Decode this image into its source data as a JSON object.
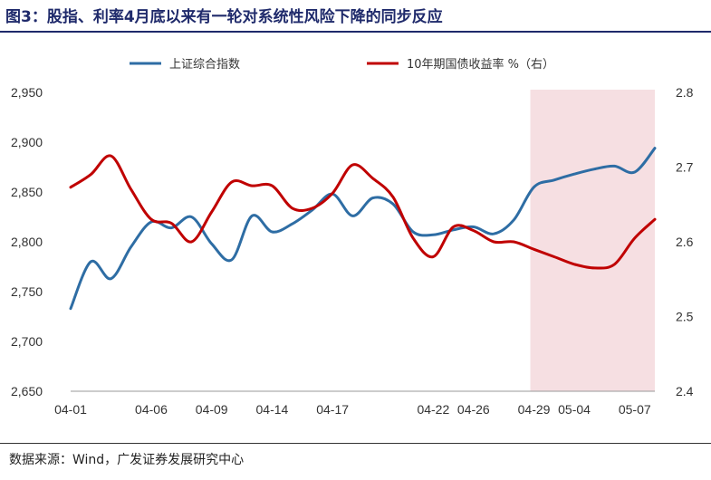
{
  "header": {
    "title": "图3：股指、利率4月底以来有一轮对系统性风险下降的同步反应"
  },
  "footer": {
    "source": "数据来源：Wind，广发证券发展研究中心"
  },
  "colors": {
    "title": "#1f2a6b",
    "series_left": "#2e6da4",
    "series_right": "#c00000",
    "highlight": "#f6dfe2"
  },
  "chart_data": {
    "type": "line",
    "x": [
      "04-01",
      "04-02",
      "04-03",
      "04-05",
      "04-06",
      "04-07",
      "04-08",
      "04-09",
      "04-12",
      "04-13",
      "04-14",
      "04-15",
      "04-16",
      "04-17",
      "04-18",
      "04-19",
      "04-20",
      "04-21",
      "04-22",
      "04-23",
      "04-26",
      "04-27",
      "04-28",
      "04-29",
      "04-30",
      "05-04",
      "05-05",
      "05-06",
      "05-07",
      "05-08"
    ],
    "x_ticks": [
      "04-01",
      "04-06",
      "04-09",
      "04-14",
      "04-17",
      "04-22",
      "04-26",
      "04-29",
      "05-04",
      "05-07"
    ],
    "series": [
      {
        "name": "上证综合指数",
        "axis": "left",
        "color": "#2e6da4",
        "values": [
          2733,
          2780,
          2763,
          2795,
          2820,
          2814,
          2825,
          2798,
          2782,
          2826,
          2810,
          2818,
          2832,
          2848,
          2826,
          2844,
          2838,
          2810,
          2807,
          2812,
          2815,
          2808,
          2822,
          2855,
          2862,
          2868,
          2873,
          2876,
          2870,
          2894
        ]
      },
      {
        "name": "10年期国债收益率 %（右）",
        "axis": "right",
        "color": "#c00000",
        "values": [
          2.673,
          2.69,
          2.715,
          2.67,
          2.63,
          2.625,
          2.6,
          2.64,
          2.68,
          2.675,
          2.675,
          2.645,
          2.645,
          2.665,
          2.703,
          2.685,
          2.66,
          2.605,
          2.58,
          2.62,
          2.615,
          2.6,
          2.6,
          2.59,
          2.58,
          2.57,
          2.565,
          2.57,
          2.605,
          2.63
        ]
      }
    ],
    "y_left": {
      "ylim": [
        2650,
        2950
      ],
      "ticks": [
        "2,650",
        "2,700",
        "2,750",
        "2,800",
        "2,850",
        "2,900",
        "2,950"
      ]
    },
    "y_right": {
      "ylim": [
        2.4,
        2.8
      ],
      "ticks": [
        "2.4",
        "2.5",
        "2.6",
        "2.7",
        "2.8"
      ]
    },
    "highlight_range": [
      "04-29",
      "05-08"
    ],
    "legend": "top-center",
    "grid": false
  }
}
